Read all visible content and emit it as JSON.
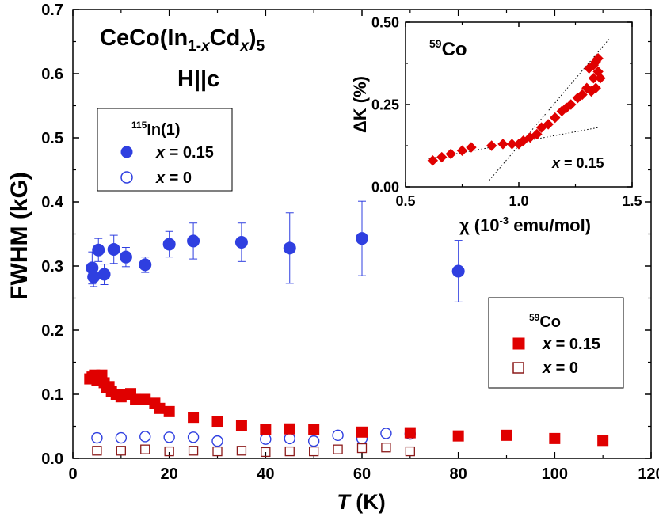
{
  "chart_data": [
    {
      "type": "scatter",
      "title_line1_base": "CeCo(In",
      "title_line1_sub1": "1-",
      "title_line1_sub1_italic": "x",
      "title_line1_mid": "Cd",
      "title_line1_sub2_italic": "x",
      "title_line1_close": ")",
      "title_line1_sub3": "5",
      "title_line2": "H||c",
      "xlabel_italic": "T",
      "xlabel_rest": " (K)",
      "ylabel": "FWHM (kG)",
      "xlim": [
        0,
        120
      ],
      "ylim": [
        0,
        0.7
      ],
      "xticks": [
        "0",
        "20",
        "40",
        "60",
        "80",
        "100",
        "120"
      ],
      "yticks": [
        "0.0",
        "0.1",
        "0.2",
        "0.3",
        "0.4",
        "0.5",
        "0.6",
        "0.7"
      ],
      "legends": [
        {
          "title_sup": "115",
          "title": "In(1)",
          "entries": [
            {
              "var": "x",
              "value": " = 0.15",
              "marker": "filled-circle",
              "color": "#2f3fe0"
            },
            {
              "var": "x",
              "value": " = 0",
              "marker": "open-circle",
              "color": "#2f3fe0"
            }
          ]
        },
        {
          "title_sup": "59",
          "title": "Co",
          "entries": [
            {
              "var": "x",
              "value": " = 0.15",
              "marker": "filled-square",
              "color": "#e00000"
            },
            {
              "var": "x",
              "value": " = 0",
              "marker": "open-square",
              "color": "#8b1a1a"
            }
          ]
        }
      ],
      "series": [
        {
          "name": "In(1) x = 0.15",
          "marker": "filled-circle",
          "color": "#2f3fe0",
          "points": [
            {
              "x": 4,
              "y": 0.297,
              "err": 0.025
            },
            {
              "x": 4.3,
              "y": 0.283,
              "err": 0.015
            },
            {
              "x": 5.3,
              "y": 0.325,
              "err": 0.018
            },
            {
              "x": 6.5,
              "y": 0.287,
              "err": 0.016
            },
            {
              "x": 8.5,
              "y": 0.326,
              "err": 0.022
            },
            {
              "x": 11,
              "y": 0.314,
              "err": 0.015
            },
            {
              "x": 15,
              "y": 0.302,
              "err": 0.012
            },
            {
              "x": 20,
              "y": 0.334,
              "err": 0.02
            },
            {
              "x": 25,
              "y": 0.339,
              "err": 0.028
            },
            {
              "x": 35,
              "y": 0.337,
              "err": 0.03
            },
            {
              "x": 45,
              "y": 0.328,
              "err": 0.055
            },
            {
              "x": 60,
              "y": 0.343,
              "err": 0.058
            },
            {
              "x": 80,
              "y": 0.292,
              "err": 0.048
            }
          ]
        },
        {
          "name": "In(1) x = 0",
          "marker": "open-circle",
          "color": "#2f3fe0",
          "points": [
            {
              "x": 5,
              "y": 0.032
            },
            {
              "x": 10,
              "y": 0.032
            },
            {
              "x": 15,
              "y": 0.034
            },
            {
              "x": 20,
              "y": 0.033
            },
            {
              "x": 25,
              "y": 0.033
            },
            {
              "x": 30,
              "y": 0.027
            },
            {
              "x": 40,
              "y": 0.03
            },
            {
              "x": 45,
              "y": 0.031
            },
            {
              "x": 50,
              "y": 0.027
            },
            {
              "x": 55,
              "y": 0.036
            },
            {
              "x": 60,
              "y": 0.031
            },
            {
              "x": 65,
              "y": 0.039
            },
            {
              "x": 70,
              "y": 0.038
            }
          ]
        },
        {
          "name": "Co x = 0.15",
          "marker": "filled-square",
          "color": "#e00000",
          "points": [
            {
              "x": 3.5,
              "y": 0.124
            },
            {
              "x": 4,
              "y": 0.127
            },
            {
              "x": 4.5,
              "y": 0.13
            },
            {
              "x": 5,
              "y": 0.122
            },
            {
              "x": 5.5,
              "y": 0.128
            },
            {
              "x": 6,
              "y": 0.13
            },
            {
              "x": 6.5,
              "y": 0.118
            },
            {
              "x": 7,
              "y": 0.111
            },
            {
              "x": 7.5,
              "y": 0.112
            },
            {
              "x": 8,
              "y": 0.104
            },
            {
              "x": 9,
              "y": 0.1
            },
            {
              "x": 10,
              "y": 0.096
            },
            {
              "x": 11,
              "y": 0.1
            },
            {
              "x": 12,
              "y": 0.101
            },
            {
              "x": 13,
              "y": 0.092
            },
            {
              "x": 15,
              "y": 0.092
            },
            {
              "x": 17,
              "y": 0.086
            },
            {
              "x": 18,
              "y": 0.078
            },
            {
              "x": 20,
              "y": 0.073
            },
            {
              "x": 25,
              "y": 0.064
            },
            {
              "x": 30,
              "y": 0.058
            },
            {
              "x": 35,
              "y": 0.051
            },
            {
              "x": 40,
              "y": 0.045
            },
            {
              "x": 45,
              "y": 0.046
            },
            {
              "x": 50,
              "y": 0.045
            },
            {
              "x": 60,
              "y": 0.041
            },
            {
              "x": 70,
              "y": 0.04
            },
            {
              "x": 80,
              "y": 0.035
            },
            {
              "x": 90,
              "y": 0.036
            },
            {
              "x": 100,
              "y": 0.031
            },
            {
              "x": 110,
              "y": 0.028
            }
          ]
        },
        {
          "name": "Co x = 0",
          "marker": "open-square",
          "color": "#8b1a1a",
          "points": [
            {
              "x": 5,
              "y": 0.012
            },
            {
              "x": 10,
              "y": 0.012
            },
            {
              "x": 15,
              "y": 0.014
            },
            {
              "x": 20,
              "y": 0.011
            },
            {
              "x": 25,
              "y": 0.012
            },
            {
              "x": 30,
              "y": 0.011
            },
            {
              "x": 35,
              "y": 0.012
            },
            {
              "x": 40,
              "y": 0.01
            },
            {
              "x": 45,
              "y": 0.011
            },
            {
              "x": 50,
              "y": 0.011
            },
            {
              "x": 55,
              "y": 0.014
            },
            {
              "x": 60,
              "y": 0.016
            },
            {
              "x": 65,
              "y": 0.017
            },
            {
              "x": 70,
              "y": 0.011
            }
          ]
        }
      ]
    },
    {
      "type": "scatter",
      "title_sup": "59",
      "title": "Co",
      "annotation_var": "x",
      "annotation_value": " = 0.15",
      "xlabel_sym": "χ (10",
      "xlabel_sup": "-3",
      "xlabel_rest": " emu/mol)",
      "ylabel": "ΔK (%)",
      "xlim": [
        0.5,
        1.5
      ],
      "ylim": [
        0,
        0.5
      ],
      "xticks": [
        "0.5",
        "1.0",
        "1.5"
      ],
      "yticks": [
        "0.00",
        "0.25",
        "0.50"
      ],
      "series": [
        {
          "name": "Co x = 0.15",
          "marker": "filled-diamond",
          "color": "#e00000",
          "points": [
            {
              "x": 0.62,
              "y": 0.08
            },
            {
              "x": 0.66,
              "y": 0.09
            },
            {
              "x": 0.7,
              "y": 0.1
            },
            {
              "x": 0.75,
              "y": 0.11
            },
            {
              "x": 0.79,
              "y": 0.12
            },
            {
              "x": 0.88,
              "y": 0.125
            },
            {
              "x": 0.93,
              "y": 0.13
            },
            {
              "x": 0.97,
              "y": 0.13
            },
            {
              "x": 1.0,
              "y": 0.13
            },
            {
              "x": 1.02,
              "y": 0.14
            },
            {
              "x": 1.05,
              "y": 0.15
            },
            {
              "x": 1.08,
              "y": 0.16
            },
            {
              "x": 1.1,
              "y": 0.18
            },
            {
              "x": 1.13,
              "y": 0.19
            },
            {
              "x": 1.16,
              "y": 0.21
            },
            {
              "x": 1.19,
              "y": 0.23
            },
            {
              "x": 1.21,
              "y": 0.24
            },
            {
              "x": 1.23,
              "y": 0.25
            },
            {
              "x": 1.26,
              "y": 0.27
            },
            {
              "x": 1.28,
              "y": 0.28
            },
            {
              "x": 1.3,
              "y": 0.3
            },
            {
              "x": 1.32,
              "y": 0.29
            },
            {
              "x": 1.34,
              "y": 0.3
            },
            {
              "x": 1.33,
              "y": 0.33
            },
            {
              "x": 1.35,
              "y": 0.35
            },
            {
              "x": 1.31,
              "y": 0.36
            },
            {
              "x": 1.33,
              "y": 0.37
            },
            {
              "x": 1.34,
              "y": 0.38
            },
            {
              "x": 1.35,
              "y": 0.39
            },
            {
              "x": 1.36,
              "y": 0.33
            }
          ]
        }
      ],
      "guide_lines": [
        {
          "x1": 0.6,
          "y1": 0.085,
          "x2": 1.35,
          "y2": 0.18
        },
        {
          "x1": 0.87,
          "y1": 0.02,
          "x2": 1.4,
          "y2": 0.45
        }
      ]
    }
  ]
}
